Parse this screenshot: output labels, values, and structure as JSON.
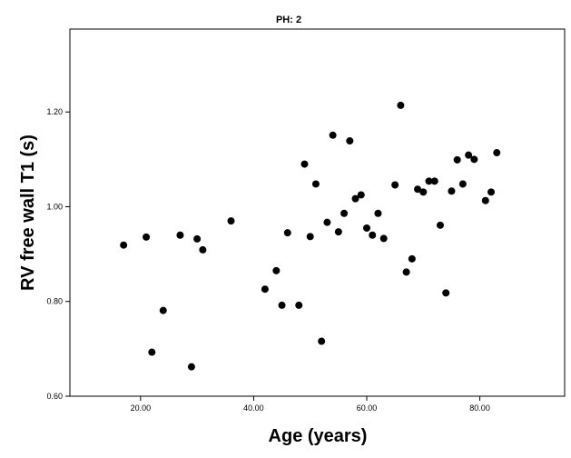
{
  "chart_data": {
    "type": "scatter",
    "title": "PH: 2",
    "xlabel": "Age (years)",
    "ylabel": "RV free wall T1 (s)",
    "xlim": [
      7.5,
      95
    ],
    "ylim": [
      0.6,
      1.375
    ],
    "xticks": [
      20,
      40,
      60,
      80
    ],
    "xtick_labels": [
      "20.00",
      "40.00",
      "60.00",
      "80.00"
    ],
    "yticks": [
      0.6,
      0.8,
      1.0,
      1.2
    ],
    "ytick_labels": [
      "0.60",
      "0.80",
      "1.00",
      "1.20"
    ],
    "grid": false,
    "marker_color": "#000000",
    "points": [
      {
        "x": 17,
        "y": 0.919
      },
      {
        "x": 21,
        "y": 0.936
      },
      {
        "x": 22,
        "y": 0.693
      },
      {
        "x": 24,
        "y": 0.781
      },
      {
        "x": 27,
        "y": 0.94
      },
      {
        "x": 29,
        "y": 0.662
      },
      {
        "x": 30,
        "y": 0.932
      },
      {
        "x": 31,
        "y": 0.909
      },
      {
        "x": 36,
        "y": 0.97
      },
      {
        "x": 42,
        "y": 0.826
      },
      {
        "x": 44,
        "y": 0.865
      },
      {
        "x": 45,
        "y": 0.792
      },
      {
        "x": 46,
        "y": 0.945
      },
      {
        "x": 48,
        "y": 0.792
      },
      {
        "x": 49,
        "y": 1.09
      },
      {
        "x": 50,
        "y": 0.937
      },
      {
        "x": 51,
        "y": 1.048
      },
      {
        "x": 52,
        "y": 0.716
      },
      {
        "x": 53,
        "y": 0.967
      },
      {
        "x": 54,
        "y": 1.151
      },
      {
        "x": 55,
        "y": 0.947
      },
      {
        "x": 56,
        "y": 0.986
      },
      {
        "x": 57,
        "y": 1.139
      },
      {
        "x": 58,
        "y": 1.017
      },
      {
        "x": 59,
        "y": 1.025
      },
      {
        "x": 60,
        "y": 0.955
      },
      {
        "x": 61,
        "y": 0.94
      },
      {
        "x": 62,
        "y": 0.986
      },
      {
        "x": 63,
        "y": 0.933
      },
      {
        "x": 65,
        "y": 1.046
      },
      {
        "x": 66,
        "y": 1.214
      },
      {
        "x": 67,
        "y": 0.862
      },
      {
        "x": 68,
        "y": 0.89
      },
      {
        "x": 69,
        "y": 1.037
      },
      {
        "x": 70,
        "y": 1.031
      },
      {
        "x": 71,
        "y": 1.054
      },
      {
        "x": 72,
        "y": 1.054
      },
      {
        "x": 73,
        "y": 0.961
      },
      {
        "x": 74,
        "y": 0.818
      },
      {
        "x": 75,
        "y": 1.033
      },
      {
        "x": 76,
        "y": 1.099
      },
      {
        "x": 77,
        "y": 1.048
      },
      {
        "x": 78,
        "y": 1.109
      },
      {
        "x": 79,
        "y": 1.1
      },
      {
        "x": 81,
        "y": 1.013
      },
      {
        "x": 82,
        "y": 1.031
      },
      {
        "x": 83,
        "y": 1.114
      }
    ]
  }
}
